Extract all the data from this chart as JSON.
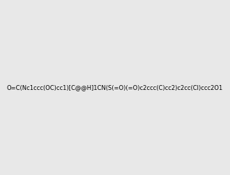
{
  "smiles": "O=C(Nc1ccc(OC)cc1)[C@@H]1CN(S(=O)(=O)c2ccc(C)cc2)c2cc(Cl)ccc2O1",
  "image_size": 300,
  "background_color": "#e8e8e8",
  "title": ""
}
